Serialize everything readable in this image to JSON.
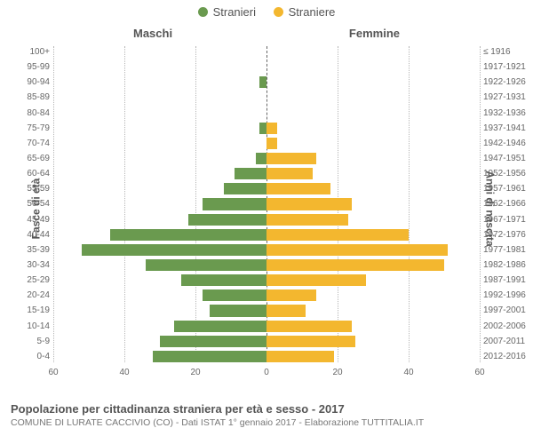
{
  "legend": {
    "male": {
      "label": "Stranieri",
      "color": "#6a9a4f"
    },
    "female": {
      "label": "Straniere",
      "color": "#f3b72f"
    }
  },
  "columns": {
    "left": "Maschi",
    "right": "Femmine"
  },
  "axisLabels": {
    "left": "Fasce di età",
    "right": "Anni di nascita"
  },
  "footer": {
    "title": "Popolazione per cittadinanza straniera per età e sesso - 2017",
    "sub": "COMUNE DI LURATE CACCIVIO (CO) - Dati ISTAT 1° gennaio 2017 - Elaborazione TUTTITALIA.IT"
  },
  "chart": {
    "type": "population-pyramid",
    "xmax": 60,
    "xticks": [
      60,
      40,
      20,
      0,
      20,
      40,
      60
    ],
    "bar_colors": {
      "male": "#6a9a4f",
      "female": "#f3b72f"
    },
    "grid_color": "#999999",
    "background_color": "#ffffff",
    "rows": [
      {
        "age": "100+",
        "year": "≤ 1916",
        "m": 0,
        "f": 0
      },
      {
        "age": "95-99",
        "year": "1917-1921",
        "m": 0,
        "f": 0
      },
      {
        "age": "90-94",
        "year": "1922-1926",
        "m": 2,
        "f": 0
      },
      {
        "age": "85-89",
        "year": "1927-1931",
        "m": 0,
        "f": 0
      },
      {
        "age": "80-84",
        "year": "1932-1936",
        "m": 0,
        "f": 0
      },
      {
        "age": "75-79",
        "year": "1937-1941",
        "m": 2,
        "f": 3
      },
      {
        "age": "70-74",
        "year": "1942-1946",
        "m": 0,
        "f": 3
      },
      {
        "age": "65-69",
        "year": "1947-1951",
        "m": 3,
        "f": 14
      },
      {
        "age": "60-64",
        "year": "1952-1956",
        "m": 9,
        "f": 13
      },
      {
        "age": "55-59",
        "year": "1957-1961",
        "m": 12,
        "f": 18
      },
      {
        "age": "50-54",
        "year": "1962-1966",
        "m": 18,
        "f": 24
      },
      {
        "age": "45-49",
        "year": "1967-1971",
        "m": 22,
        "f": 23
      },
      {
        "age": "40-44",
        "year": "1972-1976",
        "m": 44,
        "f": 40
      },
      {
        "age": "35-39",
        "year": "1977-1981",
        "m": 52,
        "f": 51
      },
      {
        "age": "30-34",
        "year": "1982-1986",
        "m": 34,
        "f": 50
      },
      {
        "age": "25-29",
        "year": "1987-1991",
        "m": 24,
        "f": 28
      },
      {
        "age": "20-24",
        "year": "1992-1996",
        "m": 18,
        "f": 14
      },
      {
        "age": "15-19",
        "year": "1997-2001",
        "m": 16,
        "f": 11
      },
      {
        "age": "10-14",
        "year": "2002-2006",
        "m": 26,
        "f": 24
      },
      {
        "age": "5-9",
        "year": "2007-2011",
        "m": 30,
        "f": 25
      },
      {
        "age": "0-4",
        "year": "2012-2016",
        "m": 32,
        "f": 19
      }
    ]
  }
}
